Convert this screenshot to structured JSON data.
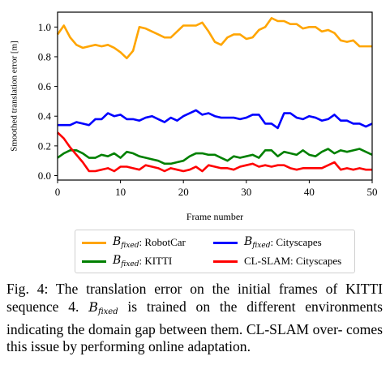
{
  "chart_data": {
    "type": "line",
    "xlabel": "Frame number",
    "ylabel": "Smoothed translation error [m]",
    "xlim": [
      0,
      50
    ],
    "ylim": [
      -0.03,
      1.1
    ],
    "xticks": [
      0,
      10,
      20,
      30,
      40,
      50
    ],
    "yticks": [
      0.0,
      0.2,
      0.4,
      0.6,
      0.8,
      1.0
    ],
    "xtick_labels": [
      "0",
      "10",
      "20",
      "30",
      "40",
      "50"
    ],
    "ytick_labels": [
      "0.0",
      "0.2",
      "0.4",
      "0.6",
      "0.8",
      "1.0"
    ],
    "grid": false,
    "legend_position": "below",
    "x": [
      0,
      1,
      2,
      3,
      4,
      5,
      6,
      7,
      8,
      9,
      10,
      11,
      12,
      13,
      14,
      15,
      16,
      17,
      18,
      19,
      20,
      21,
      22,
      23,
      24,
      25,
      26,
      27,
      28,
      29,
      30,
      31,
      32,
      33,
      34,
      35,
      36,
      37,
      38,
      39,
      40,
      41,
      42,
      43,
      44,
      45,
      46,
      47,
      48,
      49,
      50
    ],
    "series": [
      {
        "name": "B_fixed: RobotCar",
        "legend_prefix": "B",
        "legend_subscript": "fixed",
        "legend_suffix": ": RobotCar",
        "color": "#FFA500",
        "values": [
          0.95,
          1.01,
          0.93,
          0.88,
          0.86,
          0.87,
          0.88,
          0.87,
          0.88,
          0.86,
          0.83,
          0.79,
          0.84,
          1.0,
          0.99,
          0.97,
          0.95,
          0.93,
          0.93,
          0.97,
          1.01,
          1.01,
          1.01,
          1.03,
          0.97,
          0.9,
          0.88,
          0.93,
          0.95,
          0.95,
          0.92,
          0.93,
          0.98,
          1.0,
          1.06,
          1.04,
          1.04,
          1.02,
          1.02,
          0.99,
          1.0,
          1.0,
          0.97,
          0.98,
          0.96,
          0.91,
          0.9,
          0.91,
          0.87,
          0.87,
          0.87
        ]
      },
      {
        "name": "B_fixed: Cityscapes",
        "legend_prefix": "B",
        "legend_subscript": "fixed",
        "legend_suffix": ": Cityscapes",
        "color": "#0000FF",
        "values": [
          0.34,
          0.34,
          0.34,
          0.36,
          0.35,
          0.34,
          0.38,
          0.38,
          0.42,
          0.4,
          0.41,
          0.38,
          0.38,
          0.37,
          0.39,
          0.4,
          0.38,
          0.36,
          0.39,
          0.37,
          0.4,
          0.42,
          0.44,
          0.41,
          0.42,
          0.4,
          0.39,
          0.39,
          0.39,
          0.38,
          0.39,
          0.41,
          0.41,
          0.35,
          0.35,
          0.32,
          0.42,
          0.42,
          0.39,
          0.38,
          0.4,
          0.39,
          0.37,
          0.38,
          0.41,
          0.37,
          0.37,
          0.35,
          0.35,
          0.33,
          0.35
        ]
      },
      {
        "name": "B_fixed: KITTI",
        "legend_prefix": "B",
        "legend_subscript": "fixed",
        "legend_suffix": ": KITTI",
        "color": "#008000",
        "values": [
          0.12,
          0.15,
          0.17,
          0.17,
          0.15,
          0.12,
          0.12,
          0.14,
          0.13,
          0.15,
          0.12,
          0.16,
          0.15,
          0.13,
          0.12,
          0.11,
          0.1,
          0.08,
          0.08,
          0.09,
          0.1,
          0.13,
          0.15,
          0.15,
          0.14,
          0.14,
          0.12,
          0.1,
          0.13,
          0.12,
          0.13,
          0.14,
          0.12,
          0.17,
          0.17,
          0.13,
          0.16,
          0.15,
          0.14,
          0.17,
          0.14,
          0.13,
          0.16,
          0.18,
          0.15,
          0.17,
          0.16,
          0.17,
          0.18,
          0.16,
          0.14
        ]
      },
      {
        "name": "CL-SLAM: Cityscapes",
        "legend_prefix": "",
        "legend_subscript": "",
        "legend_suffix": "CL-SLAM: Cityscapes",
        "color": "#FF0000",
        "values": [
          0.29,
          0.25,
          0.19,
          0.14,
          0.09,
          0.03,
          0.03,
          0.04,
          0.05,
          0.03,
          0.06,
          0.06,
          0.05,
          0.04,
          0.07,
          0.06,
          0.05,
          0.03,
          0.05,
          0.04,
          0.03,
          0.04,
          0.06,
          0.03,
          0.07,
          0.06,
          0.05,
          0.05,
          0.04,
          0.06,
          0.07,
          0.08,
          0.06,
          0.07,
          0.06,
          0.07,
          0.07,
          0.05,
          0.04,
          0.05,
          0.05,
          0.05,
          0.05,
          0.07,
          0.09,
          0.04,
          0.05,
          0.04,
          0.05,
          0.04,
          0.04
        ]
      }
    ]
  },
  "caption": {
    "label": "Fig. 4:",
    "line1": " The translation error on the initial frames of KITTI",
    "line2_pre": "sequence 4. ",
    "b": "B",
    "sub": "fixed",
    "line2_post": " is trained on the different environments",
    "line3": "indicating the domain gap between them. CL-SLAM over-",
    "line4": "comes this issue by performing online adaptation."
  }
}
